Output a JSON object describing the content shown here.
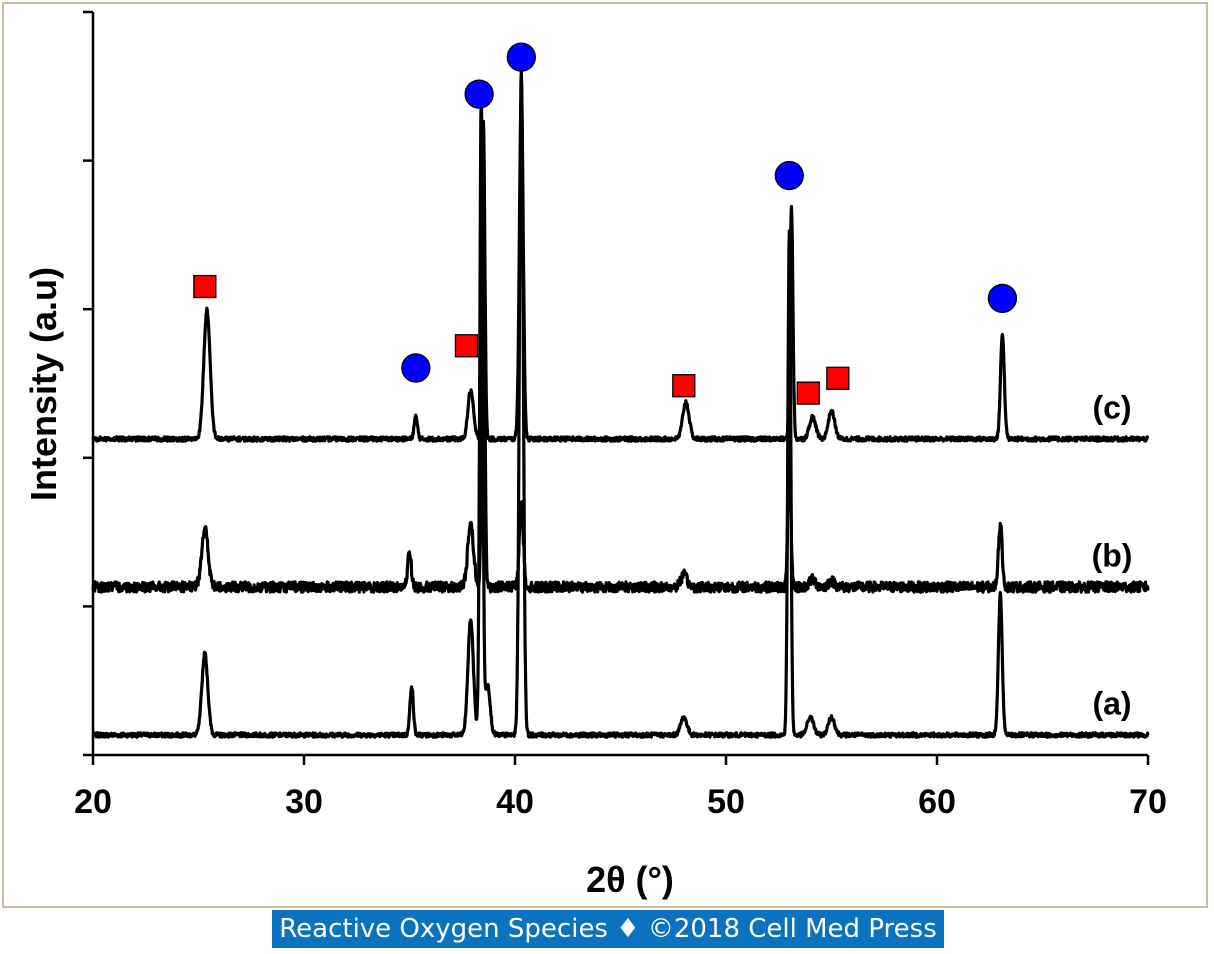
{
  "chart_data": {
    "type": "line",
    "xlabel": "2θ (°)",
    "ylabel": "Intensity (a.u)",
    "xlim": [
      20,
      70
    ],
    "xticks": [
      20,
      30,
      40,
      50,
      60,
      70
    ],
    "y_tick_count": 5,
    "grid": false,
    "series": [
      {
        "name": "(a)",
        "baseline": 0,
        "peaks": [
          {
            "x": 25.3,
            "h": 0.55,
            "w": 0.14
          },
          {
            "x": 35.1,
            "h": 0.33,
            "w": 0.08
          },
          {
            "x": 37.9,
            "h": 0.78,
            "w": 0.13
          },
          {
            "x": 38.4,
            "h": 4.3,
            "w": 0.07
          },
          {
            "x": 38.7,
            "h": 0.35,
            "w": 0.12
          },
          {
            "x": 40.3,
            "h": 4.5,
            "w": 0.09
          },
          {
            "x": 48.0,
            "h": 0.12,
            "w": 0.15
          },
          {
            "x": 53.0,
            "h": 3.4,
            "w": 0.07
          },
          {
            "x": 54.0,
            "h": 0.12,
            "w": 0.15
          },
          {
            "x": 55.0,
            "h": 0.12,
            "w": 0.15
          },
          {
            "x": 63.0,
            "h": 0.95,
            "w": 0.09
          }
        ]
      },
      {
        "name": "(b)",
        "baseline": 1,
        "peaks": [
          {
            "x": 25.3,
            "h": 0.4,
            "w": 0.15
          },
          {
            "x": 35.0,
            "h": 0.25,
            "w": 0.08
          },
          {
            "x": 37.9,
            "h": 0.42,
            "w": 0.14
          },
          {
            "x": 38.5,
            "h": 2.3,
            "w": 0.07
          },
          {
            "x": 40.3,
            "h": 0.6,
            "w": 0.09
          },
          {
            "x": 48.0,
            "h": 0.08,
            "w": 0.15
          },
          {
            "x": 53.0,
            "h": 0.9,
            "w": 0.07
          },
          {
            "x": 54.1,
            "h": 0.05,
            "w": 0.15
          },
          {
            "x": 55.0,
            "h": 0.04,
            "w": 0.15
          },
          {
            "x": 63.0,
            "h": 0.42,
            "w": 0.09
          }
        ]
      },
      {
        "name": "(c)",
        "baseline": 2,
        "peaks": [
          {
            "x": 25.4,
            "h": 0.87,
            "w": 0.15
          },
          {
            "x": 35.3,
            "h": 0.15,
            "w": 0.08
          },
          {
            "x": 37.9,
            "h": 0.33,
            "w": 0.13
          },
          {
            "x": 38.5,
            "h": 2.15,
            "w": 0.07
          },
          {
            "x": 40.3,
            "h": 2.35,
            "w": 0.09
          },
          {
            "x": 48.1,
            "h": 0.25,
            "w": 0.15
          },
          {
            "x": 53.1,
            "h": 1.58,
            "w": 0.07
          },
          {
            "x": 54.1,
            "h": 0.15,
            "w": 0.15
          },
          {
            "x": 55.0,
            "h": 0.19,
            "w": 0.15
          },
          {
            "x": 63.1,
            "h": 0.71,
            "w": 0.09
          }
        ]
      }
    ],
    "markers": [
      {
        "shape": "square",
        "color": "#ff0000",
        "x": 25.3,
        "y": 3.03
      },
      {
        "shape": "square",
        "color": "#ff0000",
        "x": 37.7,
        "y": 2.63
      },
      {
        "shape": "square",
        "color": "#ff0000",
        "x": 48.0,
        "y": 2.36
      },
      {
        "shape": "square",
        "color": "#ff0000",
        "x": 53.9,
        "y": 2.31
      },
      {
        "shape": "square",
        "color": "#ff0000",
        "x": 55.3,
        "y": 2.41
      },
      {
        "shape": "circle",
        "color": "#0000ff",
        "x": 35.3,
        "y": 2.48
      },
      {
        "shape": "circle",
        "color": "#0000ff",
        "x": 38.3,
        "y": 4.33
      },
      {
        "shape": "circle",
        "color": "#0000ff",
        "x": 40.3,
        "y": 4.58
      },
      {
        "shape": "circle",
        "color": "#0000ff",
        "x": 53.0,
        "y": 3.78
      },
      {
        "shape": "circle",
        "color": "#0000ff",
        "x": 63.1,
        "y": 2.95
      }
    ]
  },
  "footer": {
    "text": "Reactive Oxygen Species ♦ ©2018 Cell Med Press",
    "background": "#0a72bf"
  }
}
